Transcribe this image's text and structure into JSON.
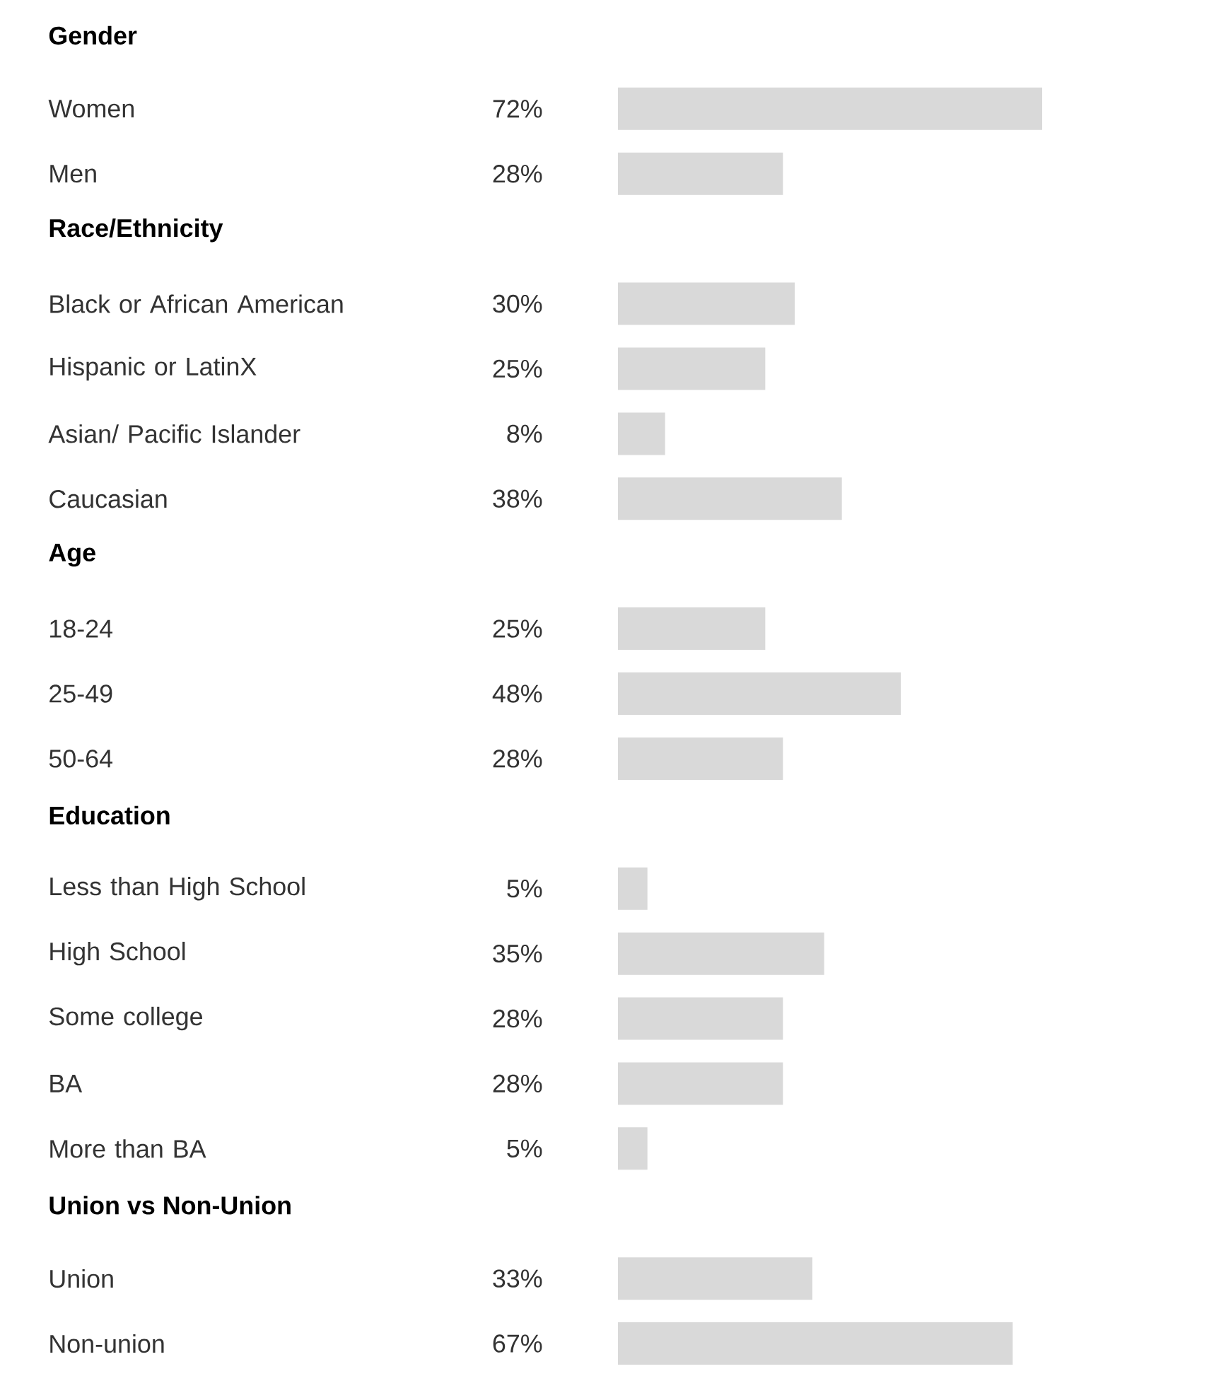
{
  "chart_data": [
    {
      "type": "bar",
      "orientation": "horizontal",
      "title": "Gender",
      "categories": [
        "Women",
        "Men"
      ],
      "values": [
        72,
        28
      ],
      "value_labels": [
        "72%",
        "28%"
      ],
      "color": "#d9d9d9"
    },
    {
      "type": "bar",
      "orientation": "horizontal",
      "title": "Race/Ethnicity",
      "categories": [
        "Black or African American",
        "Hispanic or LatinX",
        "Asian/ Pacific Islander",
        "Caucasian"
      ],
      "values": [
        30,
        25,
        8,
        38
      ],
      "value_labels": [
        "30%",
        "25%",
        "8%",
        "38%"
      ],
      "color": "#d9d9d9"
    },
    {
      "type": "bar",
      "orientation": "horizontal",
      "title": "Age",
      "categories": [
        "18-24",
        "25-49",
        "50-64"
      ],
      "values": [
        25,
        48,
        28
      ],
      "value_labels": [
        "25%",
        "48%",
        "28%"
      ],
      "color": "#d9d9d9"
    },
    {
      "type": "bar",
      "orientation": "horizontal",
      "title": "Education",
      "categories": [
        "Less than High School",
        "High School",
        "Some college",
        "BA",
        "More than BA"
      ],
      "values": [
        5,
        35,
        28,
        28,
        5
      ],
      "value_labels": [
        "5%",
        "35%",
        "28%",
        "28%",
        "5%"
      ],
      "color": "#d9d9d9"
    },
    {
      "type": "bar",
      "orientation": "horizontal",
      "title": "Union vs Non-Union",
      "categories": [
        "Union",
        "Non-union"
      ],
      "values": [
        33,
        67
      ],
      "value_labels": [
        "33%",
        "67%"
      ],
      "color": "#d9d9d9"
    }
  ]
}
